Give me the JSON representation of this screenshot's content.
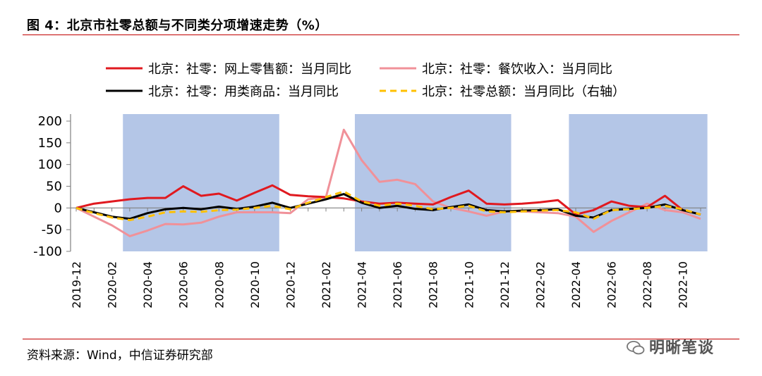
{
  "figure": {
    "title": "图 4：北京市社零总额与不同类分项增速走势（%）",
    "source": "资料来源：Wind，中信证券研究部",
    "watermark": "明晰笔谈"
  },
  "chart_data": {
    "type": "line",
    "title": "",
    "xlabel": "",
    "ylabel": "",
    "ylim": [
      -100,
      200
    ],
    "yticks": [
      200,
      150,
      100,
      50,
      0,
      -50,
      -100
    ],
    "x": [
      "2019-12",
      "2020-01",
      "2020-02",
      "2020-03",
      "2020-04",
      "2020-05",
      "2020-06",
      "2020-07",
      "2020-08",
      "2020-09",
      "2020-10",
      "2020-11",
      "2020-12",
      "2021-01",
      "2021-02",
      "2021-03",
      "2021-04",
      "2021-05",
      "2021-06",
      "2021-07",
      "2021-08",
      "2021-09",
      "2021-10",
      "2021-11",
      "2021-12",
      "2022-01",
      "2022-02",
      "2022-03",
      "2022-04",
      "2022-05",
      "2022-06",
      "2022-07",
      "2022-08",
      "2022-09",
      "2022-10",
      "2022-11"
    ],
    "xticks": [
      "2019-12",
      "2020-02",
      "2020-04",
      "2020-06",
      "2020-08",
      "2020-10",
      "2020-12",
      "2021-02",
      "2021-04",
      "2021-06",
      "2021-08",
      "2021-10",
      "2021-12",
      "2022-02",
      "2022-04",
      "2022-06",
      "2022-08",
      "2022-10"
    ],
    "shaded_ranges": [
      [
        "2020-03",
        "2020-11"
      ],
      [
        "2021-04",
        "2021-12"
      ],
      [
        "2022-04",
        "2022-11"
      ]
    ],
    "shade_color": "#b4c6e7",
    "legend_placement": "top",
    "series": [
      {
        "name": "北京：社零：网上零售额：当月同比",
        "color": "#e0191f",
        "width": 3,
        "dash": "",
        "values": [
          0,
          10,
          15,
          20,
          23,
          23,
          50,
          28,
          33,
          17,
          35,
          52,
          30,
          27,
          25,
          22,
          15,
          10,
          12,
          10,
          8,
          25,
          40,
          10,
          8,
          10,
          13,
          18,
          -15,
          -5,
          15,
          5,
          2,
          28,
          -5,
          -15
        ]
      },
      {
        "name": "北京：社零：餐饮收入：当月同比",
        "color": "#f09199",
        "width": 3,
        "dash": "",
        "values": [
          0,
          -20,
          -40,
          -65,
          -52,
          -37,
          -38,
          -34,
          -20,
          -10,
          -10,
          -10,
          -12,
          20,
          25,
          180,
          110,
          60,
          65,
          55,
          15,
          0,
          -8,
          -18,
          -8,
          -8,
          -10,
          -12,
          -20,
          -55,
          -30,
          -10,
          10,
          -5,
          -10,
          -25
        ]
      },
      {
        "name": "北京：社零：用类商品：当月同比",
        "color": "#000000",
        "width": 3,
        "dash": "",
        "values": [
          0,
          -10,
          -20,
          -25,
          -12,
          -3,
          0,
          -3,
          3,
          -2,
          3,
          12,
          0,
          10,
          20,
          32,
          12,
          0,
          5,
          -2,
          -5,
          2,
          8,
          -5,
          -8,
          -6,
          -5,
          -3,
          -18,
          -22,
          -5,
          -2,
          0,
          8,
          -5,
          -15
        ]
      },
      {
        "name": "北京：社零总额：当月同比（右轴）",
        "color": "#ffc000",
        "width": 3,
        "dash": "9 6",
        "values": [
          0,
          -12,
          -22,
          -28,
          -20,
          -10,
          -8,
          -9,
          -5,
          -4,
          0,
          5,
          -3,
          12,
          25,
          38,
          15,
          5,
          10,
          5,
          -3,
          0,
          5,
          -8,
          -10,
          -8,
          -6,
          -5,
          -10,
          -25,
          -5,
          -3,
          0,
          5,
          -3,
          -15
        ]
      }
    ]
  }
}
